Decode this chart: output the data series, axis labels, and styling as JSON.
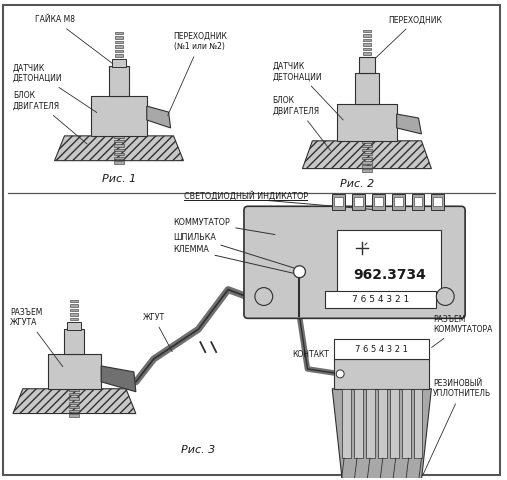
{
  "labels": {
    "gayka": "ГАЙКА М8",
    "datchik1": "ДАТЧИК\nДЕТОНАЦИИ",
    "blok1": "БЛОК\nДВИГАТЕЛЯ",
    "perehodnik1": "ПЕРЕХОДНИК\n(№1 или №2)",
    "ris1": "Рис. 1",
    "perehodnik2": "ПЕРЕХОДНИК",
    "datchik2": "ДАТЧИК\nДЕТОНАЦИИ",
    "blok2": "БЛОК\nДВИГАТЕЛЯ",
    "ris2": "Рис. 2",
    "svetodiod": "СВЕТОДИОДНЫЙ ИНДИКАТОР",
    "kommutator": "КОММУТАТОР",
    "shpilka": "ШПИЛЬКА",
    "klemma": "КЛЕММА",
    "razem_zhguta": "РАЗЪЕМ\nЖГУТА",
    "zhgut": "ЖГУТ",
    "kontakt": "КОНТАКТ",
    "razem_kommut": "РАЗЪЕМ\nКОММУТАТОРА",
    "rezin": "РЕЗИНОВЫЙ\nУПЛОТНИТЕЛЬ",
    "ris3": "Рис. 3",
    "model": "962.3734",
    "pins": "7 6 5 4 3 2 1"
  },
  "colors": {
    "light_gray": "#c8c8c8",
    "mid_gray": "#a8a8a8",
    "dark_gray": "#707070",
    "line": "#303030",
    "white": "#ffffff",
    "text": "#1a1a1a",
    "border": "#555555",
    "hatch_fg": "#888888"
  }
}
